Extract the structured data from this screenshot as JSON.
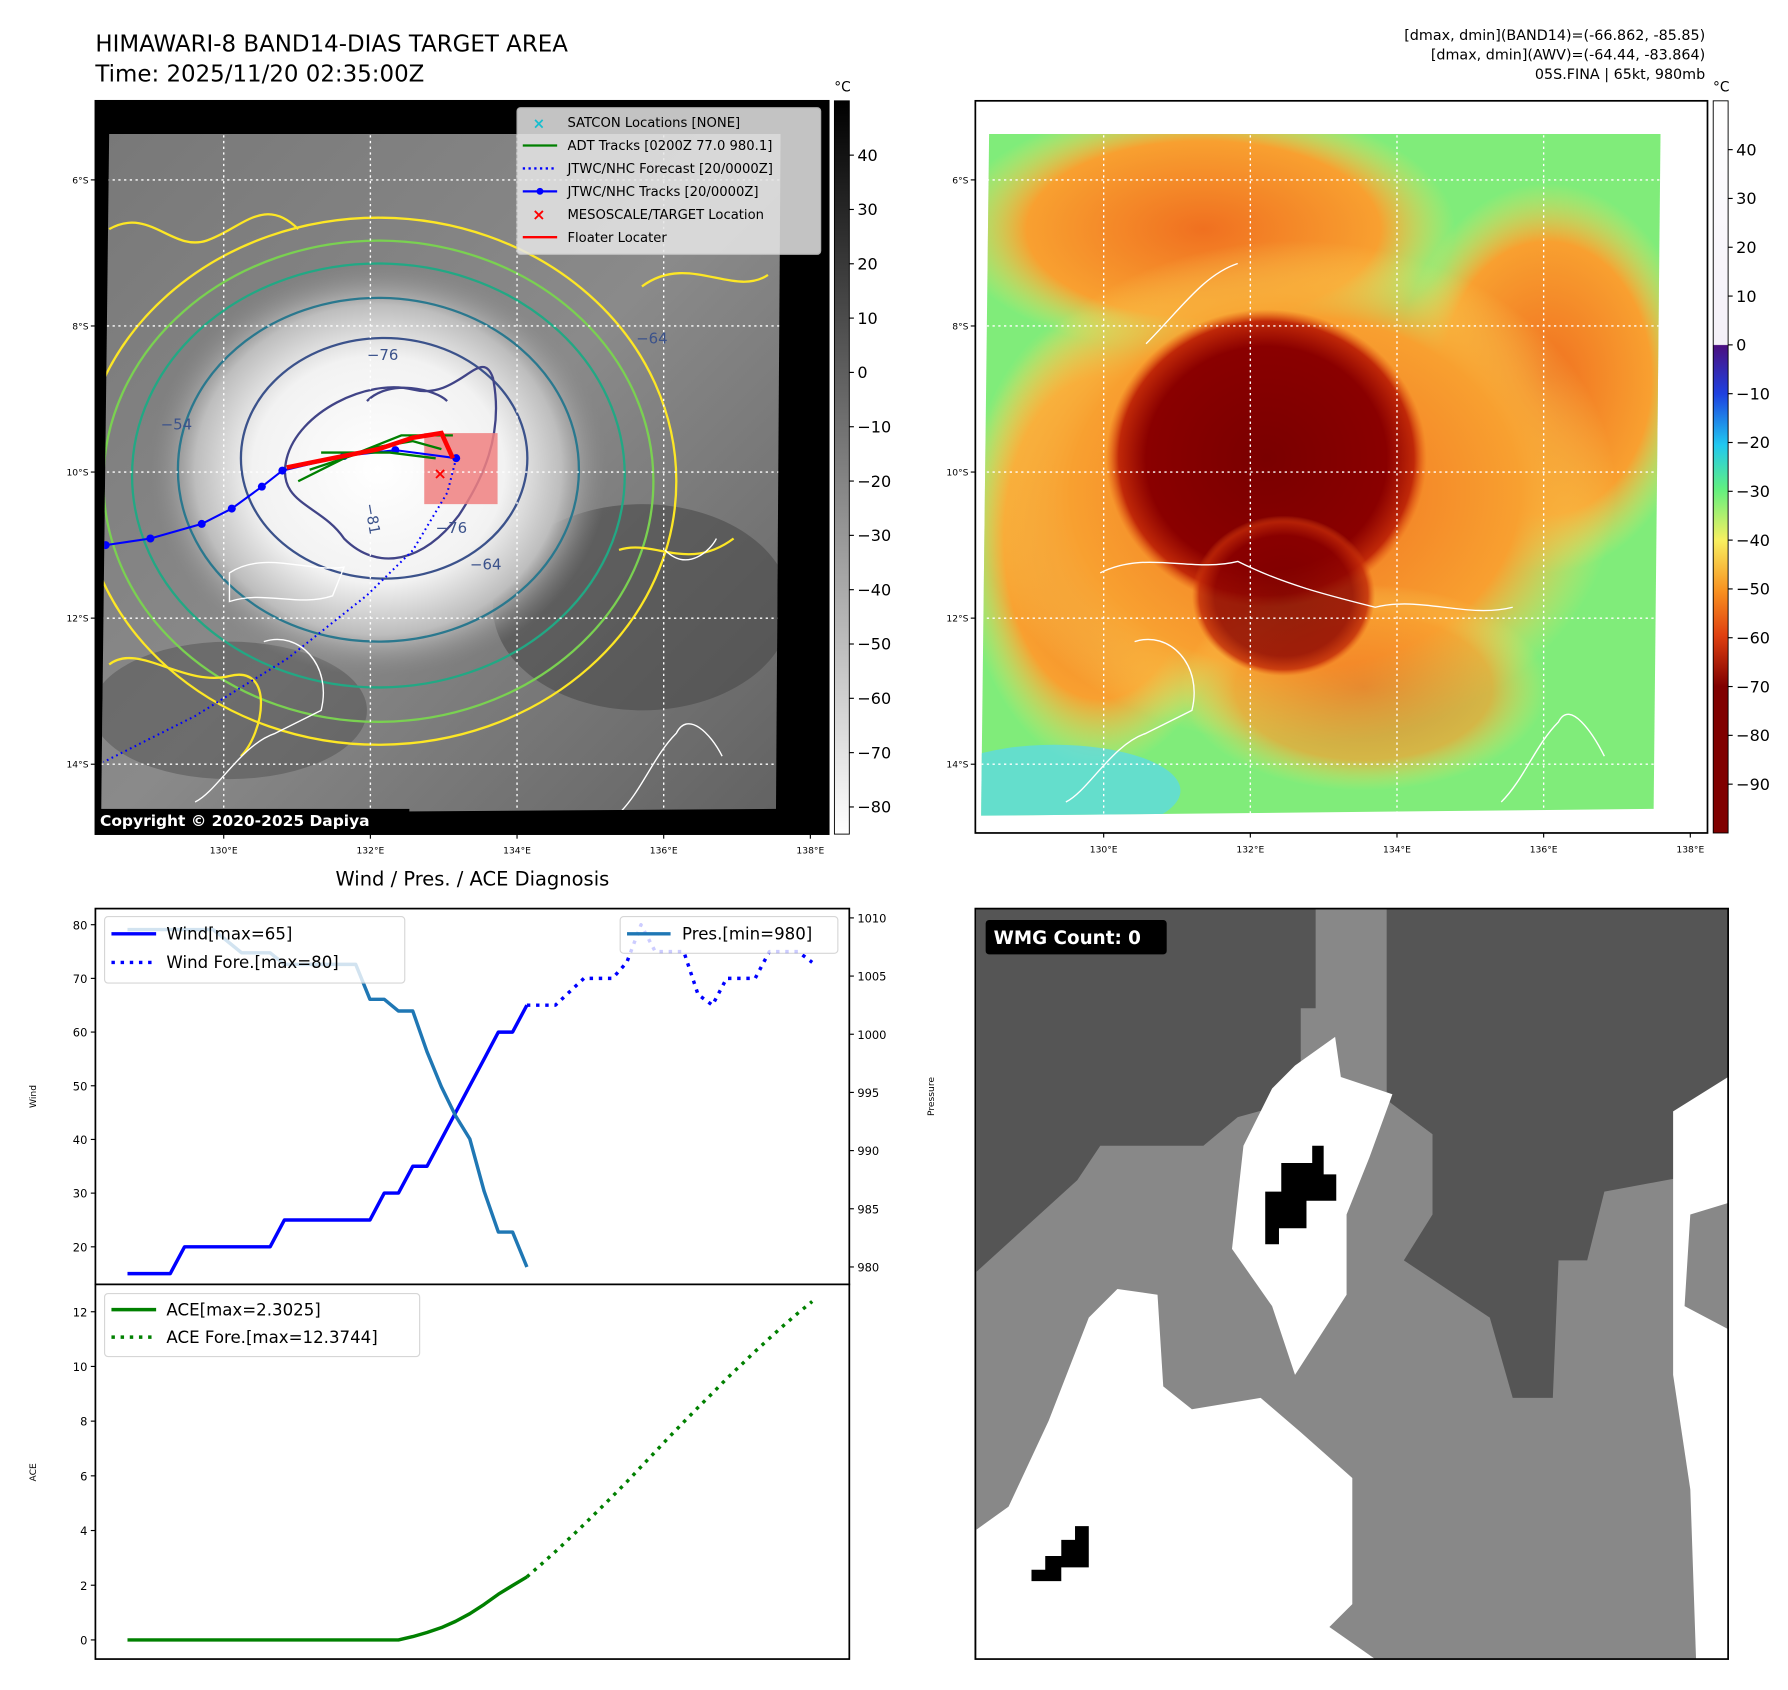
{
  "header": {
    "title": "HIMAWARI-8 BAND14-DIAS TARGET AREA",
    "time": "Time: 2025/11/20 02:35:00Z",
    "stat_band14": "[dmax, dmin](BAND14)=(-66.862, -85.85)",
    "stat_awv": "[dmax, dmin](AWV)=(-64.44, -83.864)",
    "storm": "05S.FINA | 65kt, 980mb"
  },
  "ir_map": {
    "unit": "°C",
    "colorbar_ticks": [
      "40",
      "30",
      "20",
      "10",
      "0",
      "−10",
      "−20",
      "−30",
      "−40",
      "−50",
      "−60",
      "−70",
      "−80"
    ],
    "colorbar_values": [
      40,
      30,
      20,
      10,
      0,
      -10,
      -20,
      -30,
      -40,
      -50,
      -60,
      -70,
      -80
    ],
    "colorbar_range": [
      50,
      -85
    ],
    "lat_labels": [
      "6°S",
      "8°S",
      "10°S",
      "12°S",
      "14°S"
    ],
    "lat_values": [
      6,
      8,
      10,
      12,
      14
    ],
    "lon_labels": [
      "130°E",
      "132°E",
      "134°E",
      "136°E",
      "138°E"
    ],
    "lon_values": [
      130,
      132,
      134,
      136,
      138
    ],
    "contour_labels": [
      "−76",
      "−64",
      "−81",
      "−76",
      "−64",
      "−54"
    ],
    "copyright": "Copyright © 2020-2025 Dapiya",
    "legend": [
      {
        "label": "SATCON Locations [NONE]",
        "color": "#17becf"
      },
      {
        "label": "ADT Tracks [0200Z 77.0 980.1]",
        "color": "#008000"
      },
      {
        "label": "JTWC/NHC Forecast [20/0000Z]",
        "color": "#0000ff"
      },
      {
        "label": "JTWC/NHC Tracks [20/0000Z]",
        "color": "#0000ff"
      },
      {
        "label": "MESOSCALE/TARGET Location",
        "color": "#ff0000"
      },
      {
        "label": "Floater Locater",
        "color": "#ff0000"
      }
    ],
    "jtwc_track": [
      [
        128.39,
        11.0
      ],
      [
        129.0,
        10.91
      ],
      [
        129.7,
        10.71
      ],
      [
        130.11,
        10.5
      ],
      [
        130.52,
        10.2
      ],
      [
        130.8,
        9.98
      ],
      [
        131.64,
        9.78
      ],
      [
        132.34,
        9.7
      ],
      [
        133.17,
        9.81
      ]
    ],
    "jtwc_forecast": [
      [
        133.17,
        9.81
      ],
      [
        133.05,
        10.28
      ],
      [
        132.58,
        11.07
      ],
      [
        131.95,
        11.69
      ],
      [
        130.86,
        12.56
      ],
      [
        129.61,
        13.34
      ],
      [
        128.36,
        13.97
      ]
    ]
  },
  "awv_map": {
    "unit": "°C",
    "colorbar_ticks": [
      "40",
      "30",
      "20",
      "10",
      "0",
      "−10",
      "−20",
      "−30",
      "−40",
      "−50",
      "−60",
      "−70",
      "−80",
      "−90"
    ],
    "colorbar_values": [
      40,
      30,
      20,
      10,
      0,
      -10,
      -20,
      -30,
      -40,
      -50,
      -60,
      -70,
      -80,
      -90
    ],
    "colorbar_range": [
      50,
      -100
    ],
    "lat_labels": [
      "6°S",
      "8°S",
      "10°S",
      "12°S",
      "14°S"
    ],
    "lon_labels": [
      "130°E",
      "132°E",
      "134°E",
      "136°E",
      "138°E"
    ]
  },
  "wmg": {
    "label": "WMG Count: 0"
  },
  "chart_data": [
    {
      "type": "line",
      "title": "Wind / Pres. / ACE Diagnosis",
      "ylabel": "Wind",
      "y2label": "Pressure",
      "ylim": [
        13,
        83
      ],
      "y2lim": [
        978.5,
        1010.8
      ],
      "yticks": [
        "80",
        "70",
        "60",
        "50",
        "40",
        "30",
        "20"
      ],
      "ytick_values": [
        80,
        70,
        60,
        50,
        40,
        30,
        20
      ],
      "y2ticks": [
        "1010",
        "1005",
        "1000",
        "995",
        "990",
        "985",
        "980"
      ],
      "y2tick_values": [
        1010,
        1005,
        1000,
        995,
        990,
        985,
        980
      ],
      "legend_left": [
        "Wind[max=65]",
        "Wind Fore.[max=80]"
      ],
      "legend_right": [
        "Pres.[min=980]"
      ],
      "series": [
        {
          "name": "Wind",
          "style": "solid",
          "color": "#0000ff",
          "x_start": 0,
          "values": [
            15,
            15,
            15,
            15,
            20,
            20,
            20,
            20,
            20,
            20,
            20,
            25,
            25,
            25,
            25,
            25,
            25,
            25,
            30,
            30,
            35,
            35,
            40,
            45,
            50,
            55,
            60,
            60,
            65
          ]
        },
        {
          "name": "Wind Fore.",
          "style": "dotted",
          "color": "#0000ff",
          "x_start": 28,
          "values": [
            65,
            65,
            65,
            67.5,
            70,
            70,
            70,
            73,
            80,
            75,
            75,
            75,
            67,
            65,
            70,
            70,
            70,
            75,
            75,
            75,
            73
          ]
        },
        {
          "name": "Pres.",
          "style": "solid",
          "color": "#1f77b4",
          "axis": "right",
          "x_start": 0,
          "values": [
            1009,
            1009,
            1009,
            1009,
            1009,
            1009,
            1009,
            1008,
            1007,
            1007,
            1007,
            1006,
            1006,
            1006,
            1006,
            1006,
            1006,
            1003,
            1003,
            1002,
            1002,
            998.5,
            995.5,
            993,
            991,
            986.5,
            983,
            983,
            980
          ]
        }
      ]
    },
    {
      "type": "line",
      "ylabel": "ACE",
      "ylim": [
        -0.7,
        13
      ],
      "yticks": [
        "12",
        "10",
        "8",
        "6",
        "4",
        "2",
        "0"
      ],
      "ytick_values": [
        12,
        10,
        8,
        6,
        4,
        2,
        0
      ],
      "legend": [
        "ACE[max=2.3025]",
        "ACE Fore.[max=12.3744]"
      ],
      "series": [
        {
          "name": "ACE",
          "style": "solid",
          "color": "#008000",
          "x_start": 0,
          "values": [
            0,
            0,
            0,
            0,
            0,
            0,
            0,
            0,
            0,
            0,
            0,
            0,
            0,
            0,
            0,
            0,
            0,
            0,
            0,
            0,
            0.12,
            0.27,
            0.45,
            0.68,
            0.96,
            1.3,
            1.67,
            1.99,
            2.3025
          ]
        },
        {
          "name": "ACE Fore.",
          "style": "dotted",
          "color": "#008000",
          "x_start": 28,
          "values": [
            2.3025,
            2.76,
            3.23,
            3.72,
            4.22,
            4.73,
            5.25,
            5.78,
            6.33,
            6.88,
            7.43,
            7.97,
            8.5,
            9.02,
            9.55,
            10.05,
            10.55,
            11.03,
            11.5,
            11.95,
            12.3744
          ]
        }
      ]
    }
  ]
}
